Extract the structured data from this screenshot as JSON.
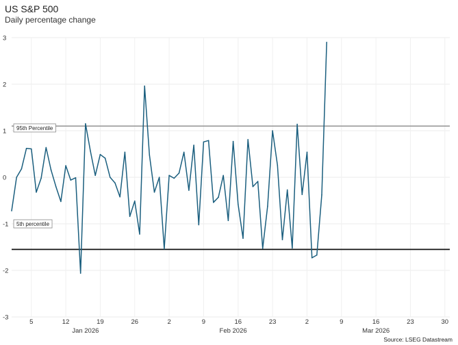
{
  "header": {
    "title": "US S&P 500",
    "subtitle": "Daily percentage change"
  },
  "footer": {
    "source": "Source: LSEG Datastream"
  },
  "chart_data": {
    "type": "line",
    "title": "US S&P 500",
    "subtitle": "Daily percentage change",
    "xlabel": "",
    "ylabel": "",
    "ylim": [
      -3,
      3
    ],
    "yticks": [
      "3",
      "2",
      "1",
      "0",
      "-1",
      "-2",
      "-3"
    ],
    "grid": true,
    "x_range": [
      "2026-01-01",
      "2026-03-31"
    ],
    "x_ticks": [
      {
        "date": "2026-01-05",
        "label": "5"
      },
      {
        "date": "2026-01-12",
        "label": "12"
      },
      {
        "date": "2026-01-19",
        "label": "19"
      },
      {
        "date": "2026-01-26",
        "label": "26"
      },
      {
        "date": "2026-02-02",
        "label": "2"
      },
      {
        "date": "2026-02-09",
        "label": "9"
      },
      {
        "date": "2026-02-16",
        "label": "16"
      },
      {
        "date": "2026-02-23",
        "label": "23"
      },
      {
        "date": "2026-03-02",
        "label": "2"
      },
      {
        "date": "2026-03-09",
        "label": "9"
      },
      {
        "date": "2026-03-16",
        "label": "16"
      },
      {
        "date": "2026-03-23",
        "label": "23"
      },
      {
        "date": "2026-03-30",
        "label": "30"
      }
    ],
    "months": [
      {
        "date": "2026-01-16",
        "label": "Jan 2026"
      },
      {
        "date": "2026-02-15",
        "label": "Feb 2026"
      },
      {
        "date": "2026-03-16",
        "label": "Mar 2026"
      }
    ],
    "reference_lines": [
      {
        "label": "95th Percentile",
        "value": 1.1,
        "color": "#9a9a9a",
        "label_value": 1.06
      },
      {
        "label": "5th percentile",
        "value": -1.55,
        "color": "#111111",
        "label_value": -1.0
      }
    ],
    "series": [
      {
        "color": "#1a5e7e",
        "points": [
          [
            "2026-01-01",
            -0.72
          ],
          [
            "2026-01-02",
            0.0
          ],
          [
            "2026-01-03",
            0.18
          ],
          [
            "2026-01-04",
            0.62
          ],
          [
            "2026-01-05",
            0.61
          ],
          [
            "2026-01-06",
            -0.32
          ],
          [
            "2026-01-07",
            -0.02
          ],
          [
            "2026-01-08",
            0.64
          ],
          [
            "2026-01-09",
            0.16
          ],
          [
            "2026-01-10",
            -0.2
          ],
          [
            "2026-01-11",
            -0.52
          ],
          [
            "2026-01-12",
            0.25
          ],
          [
            "2026-01-13",
            -0.06
          ],
          [
            "2026-01-14",
            -0.01
          ],
          [
            "2026-01-15",
            -2.06
          ],
          [
            "2026-01-16",
            1.15
          ],
          [
            "2026-01-17",
            0.56
          ],
          [
            "2026-01-18",
            0.04
          ],
          [
            "2026-01-19",
            0.49
          ],
          [
            "2026-01-20",
            0.41
          ],
          [
            "2026-01-21",
            0.0
          ],
          [
            "2026-01-22",
            -0.12
          ],
          [
            "2026-01-23",
            -0.42
          ],
          [
            "2026-01-24",
            0.54
          ],
          [
            "2026-01-25",
            -0.84
          ],
          [
            "2026-01-26",
            -0.51
          ],
          [
            "2026-01-27",
            -1.22
          ],
          [
            "2026-01-28",
            1.96
          ],
          [
            "2026-01-29",
            0.48
          ],
          [
            "2026-01-30",
            -0.32
          ],
          [
            "2026-01-31",
            0.0
          ],
          [
            "2026-02-01",
            -1.54
          ],
          [
            "2026-02-02",
            0.04
          ],
          [
            "2026-02-03",
            -0.02
          ],
          [
            "2026-02-04",
            0.09
          ],
          [
            "2026-02-05",
            0.54
          ],
          [
            "2026-02-06",
            -0.28
          ],
          [
            "2026-02-07",
            0.69
          ],
          [
            "2026-02-08",
            -1.02
          ],
          [
            "2026-02-09",
            0.76
          ],
          [
            "2026-02-10",
            0.79
          ],
          [
            "2026-02-11",
            -0.54
          ],
          [
            "2026-02-12",
            -0.43
          ],
          [
            "2026-02-13",
            0.04
          ],
          [
            "2026-02-14",
            -0.93
          ],
          [
            "2026-02-15",
            0.77
          ],
          [
            "2026-02-16",
            -0.58
          ],
          [
            "2026-02-17",
            -1.31
          ],
          [
            "2026-02-18",
            0.81
          ],
          [
            "2026-02-19",
            -0.2
          ],
          [
            "2026-02-20",
            -0.09
          ],
          [
            "2026-02-21",
            -1.53
          ],
          [
            "2026-02-22",
            -0.62
          ],
          [
            "2026-02-23",
            1.0
          ],
          [
            "2026-02-24",
            0.26
          ],
          [
            "2026-02-25",
            -1.34
          ],
          [
            "2026-02-26",
            -0.27
          ],
          [
            "2026-02-27",
            -1.52
          ],
          [
            "2026-02-28",
            1.14
          ],
          [
            "2026-03-01",
            -0.37
          ],
          [
            "2026-03-02",
            0.54
          ],
          [
            "2026-03-03",
            -1.73
          ],
          [
            "2026-03-04",
            -1.67
          ],
          [
            "2026-03-05",
            -0.38
          ],
          [
            "2026-03-06",
            2.9
          ]
        ]
      }
    ]
  }
}
